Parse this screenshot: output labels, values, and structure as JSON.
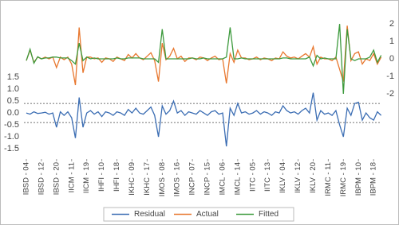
{
  "chart_data": {
    "type": "line",
    "categories": [
      "IBSD - 04",
      null,
      null,
      null,
      "IBSD - 12",
      null,
      null,
      null,
      "IBSD - 20",
      null,
      null,
      null,
      "IICM - 11",
      null,
      null,
      null,
      "IICM - 19",
      null,
      null,
      null,
      "IHFI - 10",
      null,
      null,
      null,
      "IHFI - 18",
      null,
      null,
      null,
      "IKHC - 09",
      null,
      null,
      null,
      "IKHC - 17",
      null,
      null,
      null,
      "IMOS - 08",
      null,
      null,
      null,
      "IMOS - 16",
      null,
      null,
      null,
      "INCP - 07",
      null,
      null,
      null,
      "INCP - 15",
      null,
      null,
      null,
      "IMCL - 06",
      null,
      null,
      null,
      "IMCL - 14",
      null,
      null,
      null,
      "IITC - 05",
      null,
      null,
      null,
      "IITC - 13",
      null,
      null,
      null,
      "IKLV - 04",
      null,
      null,
      null,
      "IKLV - 12",
      null,
      null,
      null,
      "IKLV - 20",
      null,
      null,
      null,
      "IRMC - 11",
      null,
      null,
      null,
      "IRMC - 19",
      null,
      null,
      null,
      "IBPM - 10",
      null,
      null,
      null,
      "IBPM - 18",
      null,
      null
    ],
    "series": [
      {
        "name": "Residual",
        "color": "#3b6db3",
        "axis": "y",
        "values": [
          0.0,
          -0.05,
          0.05,
          -0.02,
          0.0,
          0.03,
          -0.05,
          0.0,
          -0.6,
          0.05,
          -0.1,
          0.05,
          -0.2,
          -1.05,
          0.65,
          -0.6,
          0.0,
          0.1,
          -0.05,
          0.05,
          -0.15,
          0.05,
          0.0,
          -0.1,
          0.05,
          0.0,
          -0.1,
          0.15,
          0.0,
          0.2,
          0.0,
          -0.05,
          0.1,
          0.25,
          -0.1,
          -1.0,
          0.3,
          -0.05,
          0.1,
          0.5,
          0.0,
          0.1,
          -0.1,
          0.05,
          0.0,
          -0.05,
          0.1,
          0.0,
          -0.1,
          0.05,
          0.1,
          -0.05,
          0.0,
          -1.4,
          0.2,
          -0.1,
          0.4,
          0.0,
          0.05,
          -0.05,
          0.0,
          0.1,
          -0.05,
          0.05,
          0.0,
          -0.1,
          0.05,
          0.0,
          0.3,
          0.1,
          0.0,
          0.05,
          -0.05,
          0.1,
          0.2,
          0.0,
          0.85,
          -0.3,
          0.1,
          -0.05,
          0.0,
          -0.1,
          0.1,
          -0.5,
          -1.0,
          0.2,
          -0.1,
          0.4,
          0.45,
          -0.3,
          0.0,
          -0.2,
          -0.3,
          0.05,
          -0.1
        ]
      },
      {
        "name": "Actual",
        "color": "#e8772e",
        "axis": "y2",
        "values": [
          -0.1,
          0.5,
          -0.2,
          0.1,
          0.0,
          0.1,
          0.0,
          0.1,
          -0.5,
          0.1,
          -0.05,
          0.1,
          -0.3,
          -1.5,
          1.8,
          -0.8,
          0.1,
          0.1,
          0.0,
          0.05,
          -0.2,
          0.05,
          0.0,
          -0.15,
          0.1,
          0.0,
          -0.1,
          0.25,
          0.05,
          0.3,
          0.05,
          -0.05,
          0.15,
          0.35,
          -0.1,
          -1.3,
          0.9,
          -0.05,
          0.15,
          0.6,
          0.0,
          0.15,
          -0.15,
          0.05,
          0.05,
          -0.05,
          0.1,
          0.05,
          -0.1,
          0.05,
          0.15,
          -0.05,
          0.0,
          -1.4,
          0.3,
          -0.2,
          0.5,
          0.05,
          0.05,
          -0.05,
          0.0,
          0.1,
          -0.05,
          0.05,
          0.0,
          -0.1,
          0.05,
          0.0,
          0.4,
          0.15,
          0.05,
          0.1,
          0.0,
          0.15,
          0.3,
          0.1,
          0.7,
          -0.3,
          0.1,
          0.0,
          0.0,
          -0.1,
          0.1,
          -0.6,
          -1.3,
          1.9,
          -0.1,
          0.3,
          0.4,
          -0.3,
          0.0,
          -0.1,
          0.3,
          -0.3,
          0.1
        ]
      },
      {
        "name": "Fitted",
        "color": "#3d9a3d",
        "axis": "y2",
        "values": [
          -0.1,
          0.55,
          -0.25,
          0.12,
          0.0,
          0.05,
          0.05,
          0.1,
          0.1,
          0.05,
          0.05,
          0.05,
          -0.1,
          -0.3,
          0.9,
          -0.1,
          0.1,
          0.0,
          0.05,
          0.0,
          0.0,
          0.0,
          0.0,
          0.0,
          0.05,
          0.0,
          0.0,
          0.05,
          0.05,
          0.05,
          0.05,
          0.0,
          0.0,
          0.0,
          0.0,
          -0.2,
          1.7,
          0.0,
          0.0,
          0.0,
          0.0,
          0.0,
          0.0,
          0.0,
          0.05,
          0.0,
          0.0,
          0.05,
          0.0,
          0.0,
          0.0,
          0.0,
          0.0,
          0.1,
          1.8,
          0.0,
          0.0,
          0.05,
          0.0,
          0.0,
          0.0,
          0.0,
          0.0,
          0.0,
          0.0,
          0.0,
          0.0,
          0.0,
          0.05,
          0.05,
          0.0,
          0.0,
          0.0,
          0.0,
          0.0,
          0.1,
          -0.4,
          0.2,
          0.0,
          0.05,
          0.0,
          0.0,
          0.0,
          2.0,
          -2.0,
          1.7,
          0.0,
          -0.1,
          0.0,
          0.0,
          0.0,
          0.1,
          0.5,
          -0.2,
          0.2
        ]
      }
    ],
    "ylim": [
      -1.93,
      4.57
    ],
    "yticks": [
      -1.5,
      {
        "value": -1,
        "label": "-1.0"
      },
      -0.5,
      {
        "value": 0,
        "label": "0.0"
      },
      0.5,
      {
        "value": 1,
        "label": "1.0"
      },
      1.5
    ],
    "y2lim": [
      -5.73,
      3.14
    ],
    "y2ticks": [
      -2,
      -1,
      0,
      1,
      2
    ],
    "reference_lines": [
      0.4,
      -0.4
    ],
    "grid": false,
    "legend": "bottom"
  }
}
